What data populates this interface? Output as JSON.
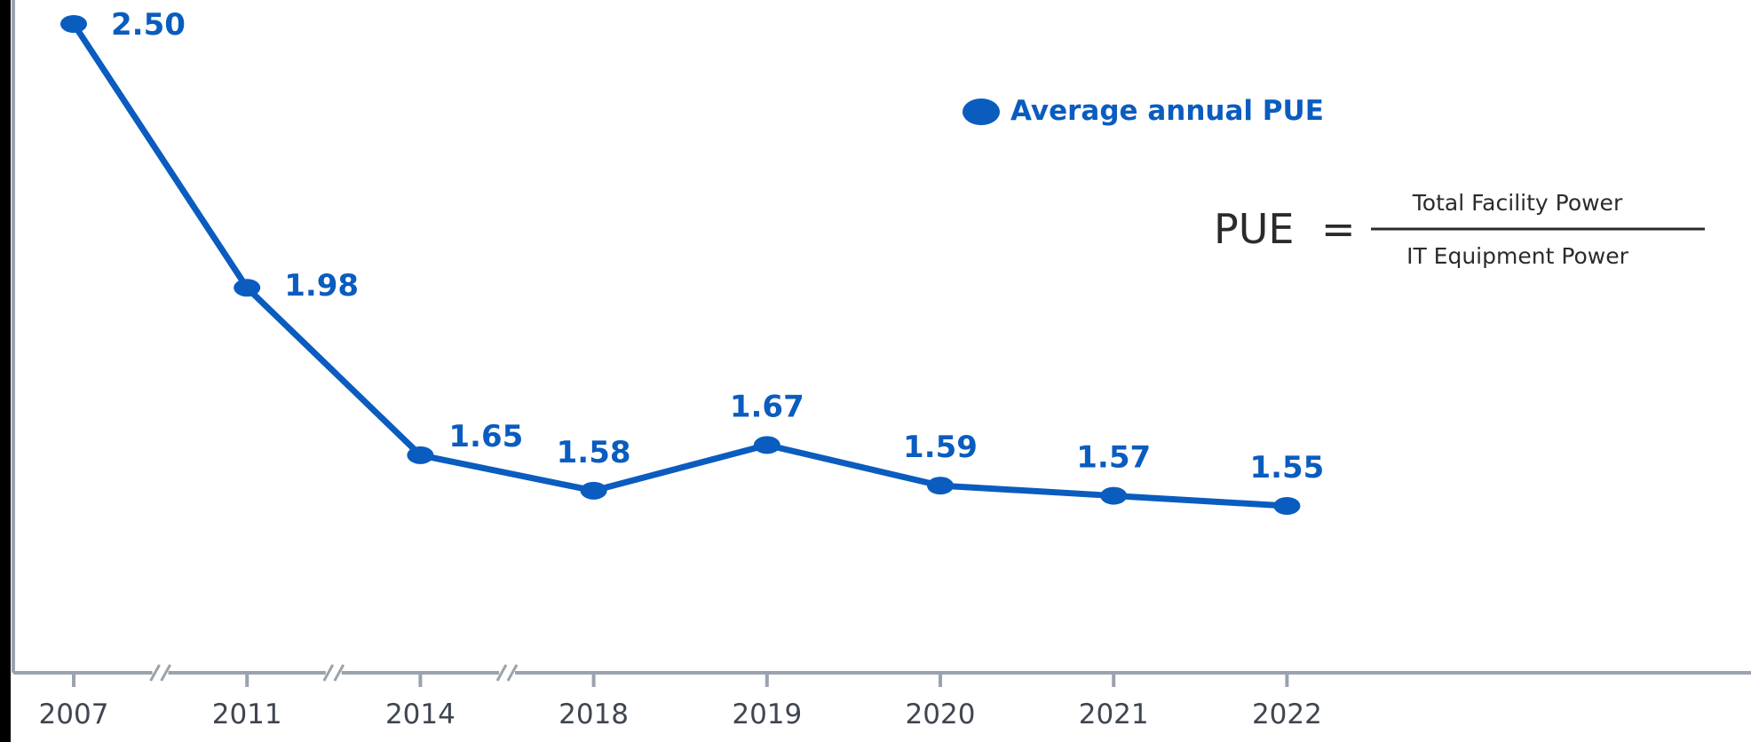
{
  "chart_data": {
    "type": "line",
    "categories": [
      "2007",
      "2011",
      "2014",
      "2018",
      "2019",
      "2020",
      "2021",
      "2022"
    ],
    "series": [
      {
        "name": "Average annual PUE",
        "values": [
          2.5,
          1.98,
          1.65,
          1.58,
          1.67,
          1.59,
          1.57,
          1.55
        ]
      }
    ],
    "data_labels": [
      "2.50",
      "1.98",
      "1.65",
      "1.58",
      "1.67",
      "1.59",
      "1.57",
      "1.55"
    ],
    "axis_breaks_after": [
      "2007",
      "2011",
      "2014"
    ],
    "title": "",
    "xlabel": "",
    "ylabel": "",
    "y_axis_ticks_shown": false,
    "grid": false,
    "legend_placement": "top-right",
    "colors": {
      "series": "#0a5cbf",
      "axis": "#9aa3ad",
      "tick_text": "#3f4650",
      "formula_text": "#2b2b2b",
      "frame_background": "#000000",
      "plot_background": "#ffffff"
    }
  },
  "legend": {
    "label": "Average annual PUE"
  },
  "formula": {
    "lhs": "PUE",
    "equals": "=",
    "numerator": "Total Facility Power",
    "denominator": "IT Equipment Power"
  }
}
